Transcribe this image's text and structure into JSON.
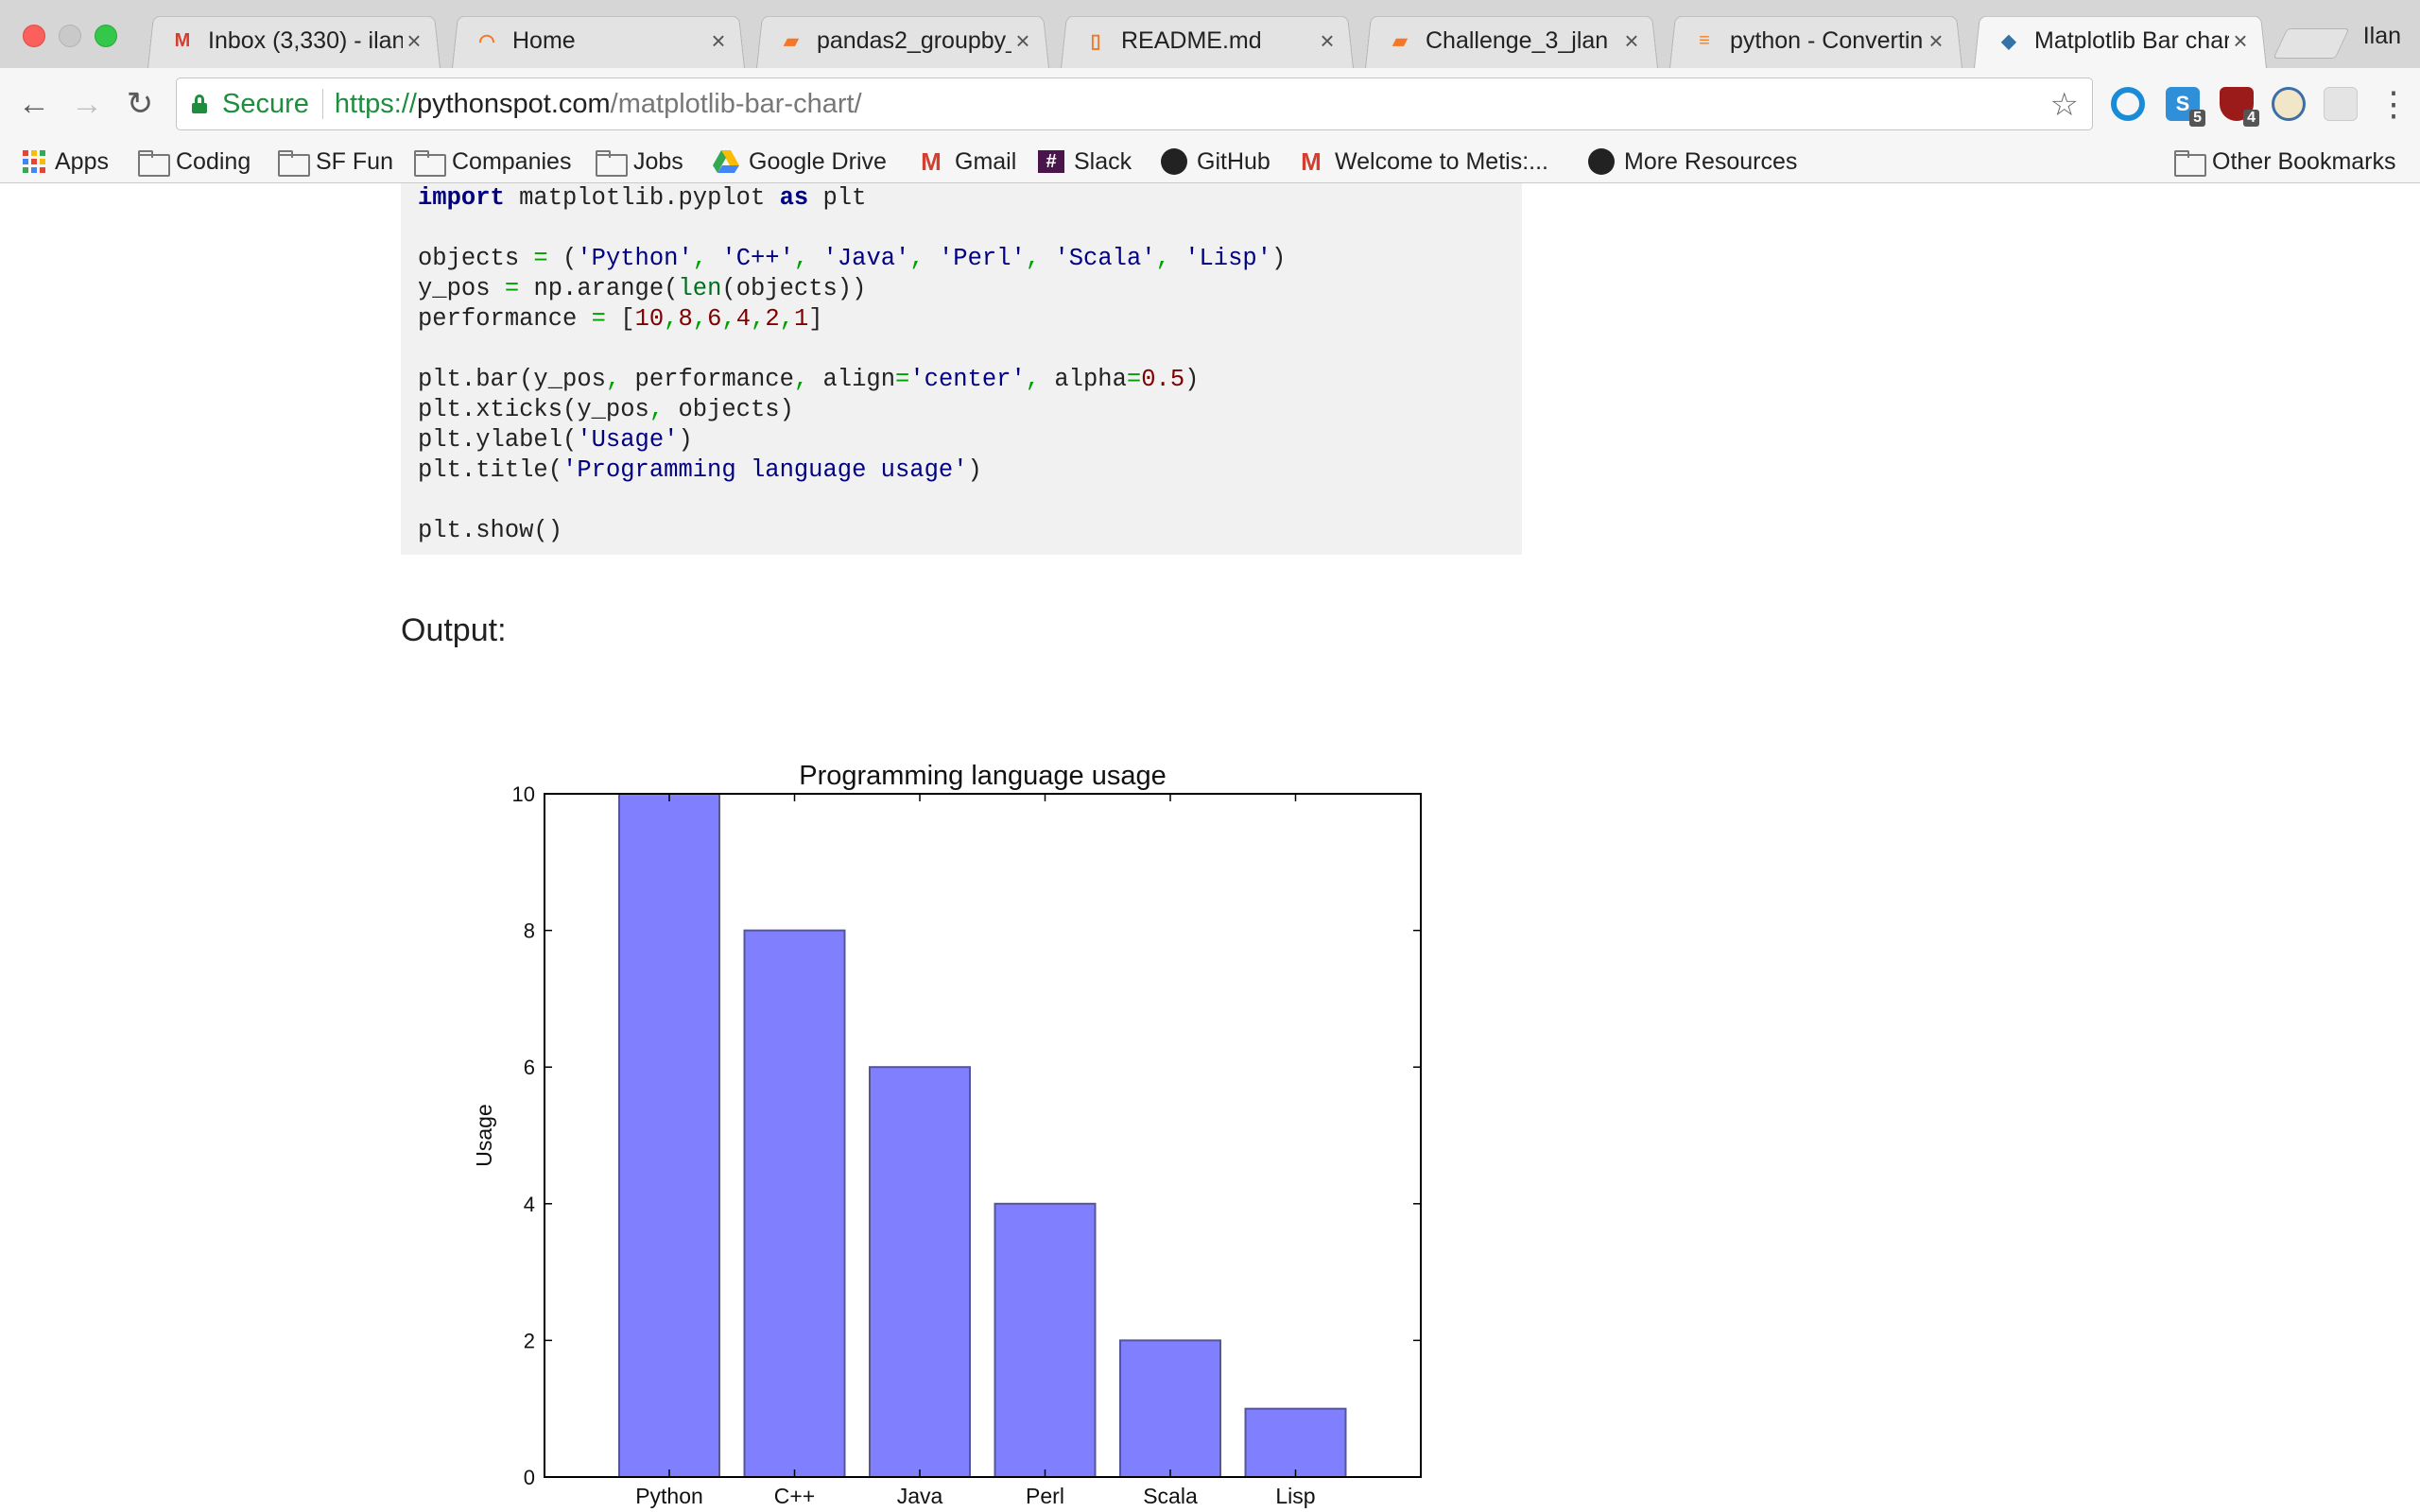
{
  "browser": {
    "profile_name": "Ilan",
    "tabs": [
      {
        "title": "Inbox (3,330) - ilan",
        "icon": "gmail-icon",
        "active": false
      },
      {
        "title": "Home",
        "icon": "jupyter-icon",
        "active": false
      },
      {
        "title": "pandas2_groupby_",
        "icon": "notebook-icon",
        "active": false
      },
      {
        "title": "README.md",
        "icon": "document-icon",
        "active": false
      },
      {
        "title": "Challenge_3_jlan",
        "icon": "notebook-icon",
        "active": false
      },
      {
        "title": "python - Convertin",
        "icon": "stackoverflow-icon",
        "active": false
      },
      {
        "title": "Matplotlib Bar char",
        "icon": "python-icon",
        "active": true
      }
    ],
    "tab_close_glyph": "×",
    "omnibox": {
      "secure_label": "Secure",
      "url_scheme": "https://",
      "url_host": "pythonspot.com",
      "url_path": "/matplotlib-bar-chart/"
    },
    "extensions": [
      {
        "name": "circle-extension-icon"
      },
      {
        "name": "skype-extension-icon",
        "badge": "5"
      },
      {
        "name": "ublock-extension-icon",
        "badge": "4"
      },
      {
        "name": "glasses-extension-icon"
      },
      {
        "name": "generic-extension-icon"
      }
    ],
    "bookmarks": [
      {
        "label": "Apps",
        "icon": "apps-icon"
      },
      {
        "label": "Coding",
        "icon": "folder-icon"
      },
      {
        "label": "SF Fun",
        "icon": "folder-icon"
      },
      {
        "label": "Companies",
        "icon": "folder-icon"
      },
      {
        "label": "Jobs",
        "icon": "folder-icon"
      },
      {
        "label": "Google Drive",
        "icon": "google-drive-icon"
      },
      {
        "label": "Gmail",
        "icon": "gmail-icon"
      },
      {
        "label": "Slack",
        "icon": "slack-icon"
      },
      {
        "label": "GitHub",
        "icon": "github-icon"
      },
      {
        "label": "Welcome to Metis:...",
        "icon": "gmail-icon"
      },
      {
        "label": "More Resources",
        "icon": "github-icon"
      },
      {
        "label": "Other Bookmarks",
        "icon": "folder-icon"
      }
    ]
  },
  "page": {
    "code_lines": [
      "import matplotlib.pyplot as plt",
      "",
      "objects = ('Python', 'C++', 'Java', 'Perl', 'Scala', 'Lisp')",
      "y_pos = np.arange(len(objects))",
      "performance = [10,8,6,4,2,1]",
      "",
      "plt.bar(y_pos, performance, align='center', alpha=0.5)",
      "plt.xticks(y_pos, objects)",
      "plt.ylabel('Usage')",
      "plt.title('Programming language usage')",
      "",
      "plt.show()"
    ],
    "output_label": "Output:"
  },
  "chart_data": {
    "type": "bar",
    "title": "Programming language usage",
    "xlabel": "",
    "ylabel": "Usage",
    "categories": [
      "Python",
      "C++",
      "Java",
      "Perl",
      "Scala",
      "Lisp"
    ],
    "values": [
      10,
      8,
      6,
      4,
      2,
      1
    ],
    "ylim": [
      0,
      10
    ],
    "yticks": [
      0,
      2,
      4,
      6,
      8,
      10
    ],
    "bar_color": "#8080ff",
    "edge_color": "#555599",
    "grid": false
  }
}
